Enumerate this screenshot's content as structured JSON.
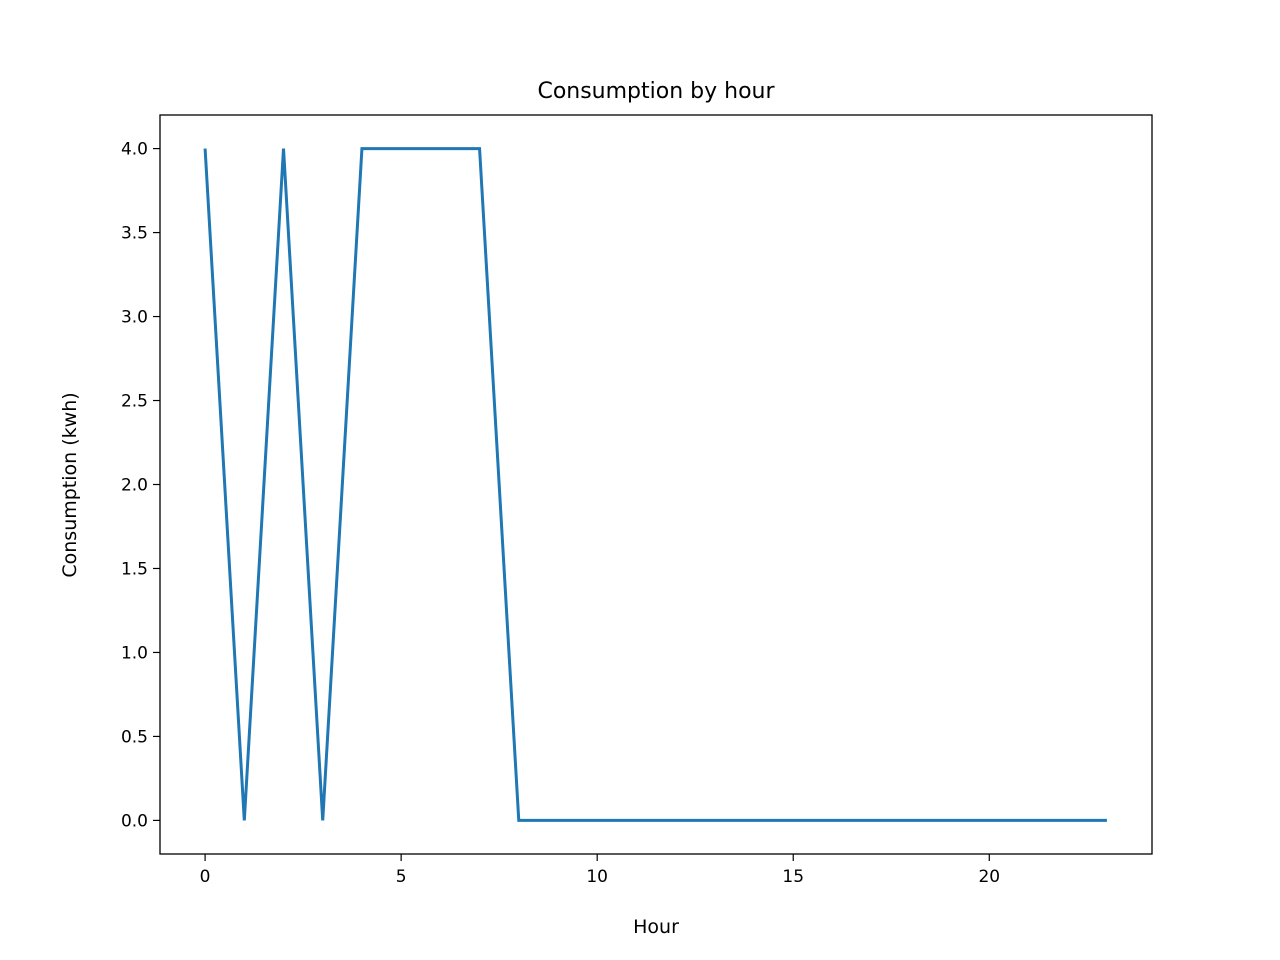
{
  "chart_data": {
    "type": "line",
    "title": "Consumption by hour",
    "xlabel": "Hour",
    "ylabel": "Consumption (kwh)",
    "xlim": [
      -1.15,
      24.15
    ],
    "ylim": [
      -0.2,
      4.2
    ],
    "xticks": [
      0,
      5,
      10,
      15,
      20
    ],
    "xtick_labels": [
      "0",
      "5",
      "10",
      "15",
      "20"
    ],
    "yticks": [
      0.0,
      0.5,
      1.0,
      1.5,
      2.0,
      2.5,
      3.0,
      3.5,
      4.0
    ],
    "ytick_labels": [
      "0.0",
      "0.5",
      "1.0",
      "1.5",
      "2.0",
      "2.5",
      "3.0",
      "3.5",
      "4.0"
    ],
    "grid": false,
    "legend": "none",
    "series": [
      {
        "color": "#1f77b4",
        "x": [
          0,
          1,
          2,
          3,
          4,
          5,
          6,
          7,
          8,
          9,
          10,
          11,
          12,
          13,
          14,
          15,
          16,
          17,
          18,
          19,
          20,
          21,
          22,
          23
        ],
        "values": [
          4,
          0,
          4,
          0,
          4,
          4,
          4,
          4,
          0,
          0,
          0,
          0,
          0,
          0,
          0,
          0,
          0,
          0,
          0,
          0,
          0,
          0,
          0,
          0
        ]
      }
    ]
  }
}
